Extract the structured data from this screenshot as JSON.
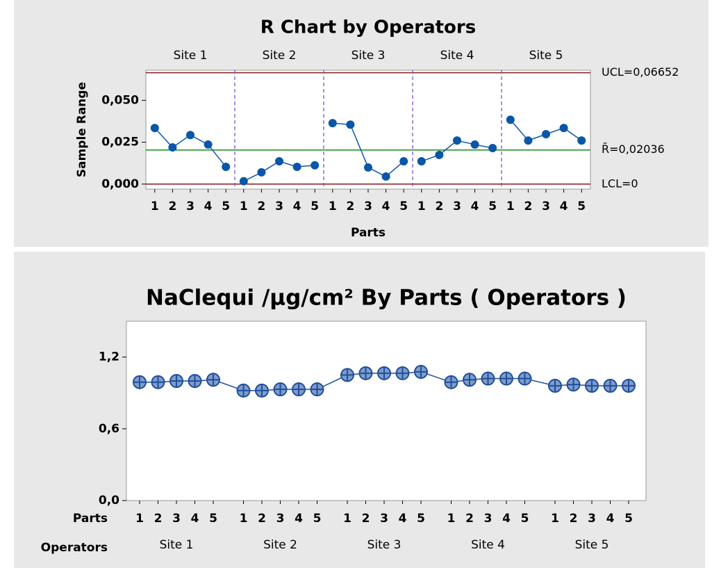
{
  "chart_data": [
    {
      "type": "line",
      "title": "R Chart by Operators",
      "ylabel": "Sample Range",
      "xlabel": "Parts",
      "categories": [
        "1",
        "2",
        "3",
        "4",
        "5"
      ],
      "series": [
        {
          "name": "Site 1",
          "values": [
            0.0335,
            0.0219,
            0.0293,
            0.0236,
            0.0103
          ]
        },
        {
          "name": "Site 2",
          "values": [
            0.0017,
            0.007,
            0.0136,
            0.0103,
            0.0112
          ]
        },
        {
          "name": "Site 3",
          "values": [
            0.0364,
            0.0355,
            0.0099,
            0.0045,
            0.0136
          ]
        },
        {
          "name": "Site 4",
          "values": [
            0.0136,
            0.0174,
            0.026,
            0.0236,
            0.0215
          ]
        },
        {
          "name": "Site 5",
          "values": [
            0.0384,
            0.026,
            0.0298,
            0.0335,
            0.026
          ]
        }
      ],
      "color": "#0a56a8",
      "marker": "dot",
      "connect_groups": false,
      "ylim": [
        -0.003,
        0.068
      ],
      "yticks": [
        {
          "value": 0,
          "label": "0,000"
        },
        {
          "value": 0.025,
          "label": "0,025"
        },
        {
          "value": 0.05,
          "label": "0,050"
        }
      ],
      "reference_lines": [
        {
          "value": 0.06652,
          "label": "UCL=0,06652",
          "color": "#8b1a1a"
        },
        {
          "value": 0.02036,
          "label": "R̄=0,02036",
          "color": "#1a8c1a"
        },
        {
          "value": 0,
          "label": "LCL=0",
          "color": "#8b1a1a"
        }
      ]
    },
    {
      "type": "line",
      "title": "NaClequi /µg/cm² By Parts ( Operators )",
      "xlabel": "Parts",
      "group_label": "Operators",
      "categories": [
        "1",
        "2",
        "3",
        "4",
        "5"
      ],
      "series": [
        {
          "name": "Site 1",
          "values": [
            0.99,
            0.99,
            1.0,
            1.0,
            1.01
          ]
        },
        {
          "name": "Site 2",
          "values": [
            0.92,
            0.92,
            0.93,
            0.93,
            0.93
          ]
        },
        {
          "name": "Site 3",
          "values": [
            1.05,
            1.065,
            1.065,
            1.065,
            1.076
          ]
        },
        {
          "name": "Site 4",
          "values": [
            0.99,
            1.01,
            1.02,
            1.02,
            1.02
          ]
        },
        {
          "name": "Site 5",
          "values": [
            0.96,
            0.97,
            0.96,
            0.96,
            0.96
          ]
        }
      ],
      "color": "#1f4e9c",
      "marker": "crossed-circle",
      "connect_groups": true,
      "ylim": [
        0,
        1.5
      ],
      "yticks": [
        {
          "value": 0,
          "label": "0,0"
        },
        {
          "value": 0.6,
          "label": "0,6"
        },
        {
          "value": 1.2,
          "label": "1,2"
        }
      ]
    }
  ]
}
